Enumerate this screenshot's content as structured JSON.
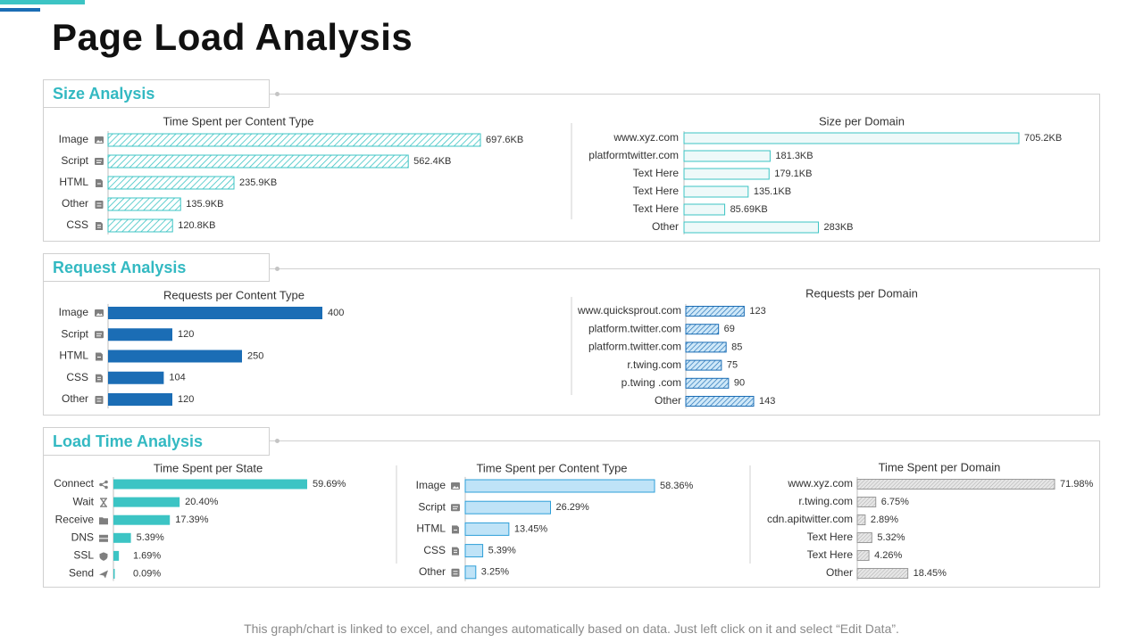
{
  "page": {
    "title": "Page Load Analysis",
    "footer": "This graph/chart is linked to excel, and changes automatically based on data. Just left click on it and select “Edit Data”."
  },
  "sections": {
    "size": "Size Analysis",
    "request": "Request Analysis",
    "load": "Load Time Analysis"
  },
  "colors": {
    "teal": "#3cc4c4",
    "blue": "#1b6db5",
    "light_blue": "#bfe3f7",
    "pale_teal": "#eef9f9",
    "grey": "#d9d9d9"
  },
  "chart_data": [
    {
      "id": "size_content",
      "type": "bar",
      "title": "Time Spent per Content Type",
      "categories": [
        "Image",
        "Script",
        "HTML",
        "Other",
        "CSS"
      ],
      "icons": [
        "image-icon",
        "script-icon",
        "html-icon",
        "other-icon",
        "css-icon"
      ],
      "values": [
        697.6,
        562.4,
        235.9,
        135.9,
        120.8
      ],
      "labels": [
        "697.6KB",
        "562.4KB",
        "235.9KB",
        "135.9KB",
        "120.8KB"
      ],
      "unit": "KB",
      "xlim": [
        0,
        697.6
      ],
      "style": "teal-hatch"
    },
    {
      "id": "size_domain",
      "type": "bar",
      "title": "Size per Domain",
      "categories": [
        "www.xyz.com",
        "platformtwitter.com",
        "Text Here",
        "Text Here",
        "Text Here",
        "Other"
      ],
      "values": [
        705.2,
        181.3,
        179.1,
        135.1,
        85.69,
        283
      ],
      "labels": [
        "705.2KB",
        "181.3KB",
        "179.1KB",
        "135.1KB",
        "85.69KB",
        "283KB"
      ],
      "unit": "KB",
      "xlim": [
        0,
        705.2
      ],
      "style": "teal-outline"
    },
    {
      "id": "req_content",
      "type": "bar",
      "title": "Requests per Content Type",
      "categories": [
        "Image",
        "Script",
        "HTML",
        "CSS",
        "Other"
      ],
      "icons": [
        "image-icon",
        "script-icon",
        "html-icon",
        "css-icon",
        "other-icon"
      ],
      "values": [
        400,
        120,
        250,
        104,
        120
      ],
      "labels": [
        "400",
        "120",
        "250",
        "104",
        "120"
      ],
      "xlim": [
        0,
        400
      ],
      "style": "blue-solid"
    },
    {
      "id": "req_domain",
      "type": "bar",
      "title": "Requests per Domain",
      "categories": [
        "www.quicksprout.com",
        "platform.twitter.com",
        "platform.twitter.com",
        "r.twing.com",
        "p.twing .com",
        "Other"
      ],
      "values": [
        123,
        69,
        85,
        75,
        90,
        143
      ],
      "labels": [
        "123",
        "69",
        "85",
        "75",
        "90",
        "143"
      ],
      "xlim": [
        0,
        143
      ],
      "style": "blue-hatch"
    },
    {
      "id": "load_state",
      "type": "bar",
      "title": "Time Spent per State",
      "categories": [
        "Connect",
        "Wait",
        "Receive",
        "DNS",
        "SSL",
        "Send"
      ],
      "icons": [
        "share-icon",
        "hourglass-icon",
        "download-icon",
        "server-icon",
        "shield-icon",
        "send-icon"
      ],
      "values": [
        59.69,
        20.4,
        17.39,
        5.39,
        1.69,
        0.09
      ],
      "labels": [
        "59.69%",
        "20.40%",
        "17.39%",
        "5.39%",
        "1.69%",
        "0.09%"
      ],
      "unit": "%",
      "xlim": [
        0,
        59.69
      ],
      "style": "teal-solid"
    },
    {
      "id": "load_content",
      "type": "bar",
      "title": "Time Spent per Content Type",
      "categories": [
        "Image",
        "Script",
        "HTML",
        "CSS",
        "Other"
      ],
      "icons": [
        "image-icon",
        "script-icon",
        "html-icon",
        "css-icon",
        "other-icon"
      ],
      "values": [
        58.36,
        26.29,
        13.45,
        5.39,
        3.25
      ],
      "labels": [
        "58.36%",
        "26.29%",
        "13.45%",
        "5.39%",
        "3.25%"
      ],
      "unit": "%",
      "xlim": [
        0,
        58.36
      ],
      "style": "lightblue-solid"
    },
    {
      "id": "load_domain",
      "type": "bar",
      "title": "Time Spent per Domain",
      "categories": [
        "www.xyz.com",
        "r.twing.com",
        "cdn.apitwitter.com",
        "Text Here",
        "Text Here",
        "Other"
      ],
      "values": [
        71.98,
        6.75,
        2.89,
        5.32,
        4.26,
        18.45
      ],
      "labels": [
        "71.98%",
        "6.75%",
        "2.89%",
        "5.32%",
        "4.26%",
        "18.45%"
      ],
      "unit": "%",
      "xlim": [
        0,
        71.98
      ],
      "style": "grey-hatch"
    }
  ]
}
